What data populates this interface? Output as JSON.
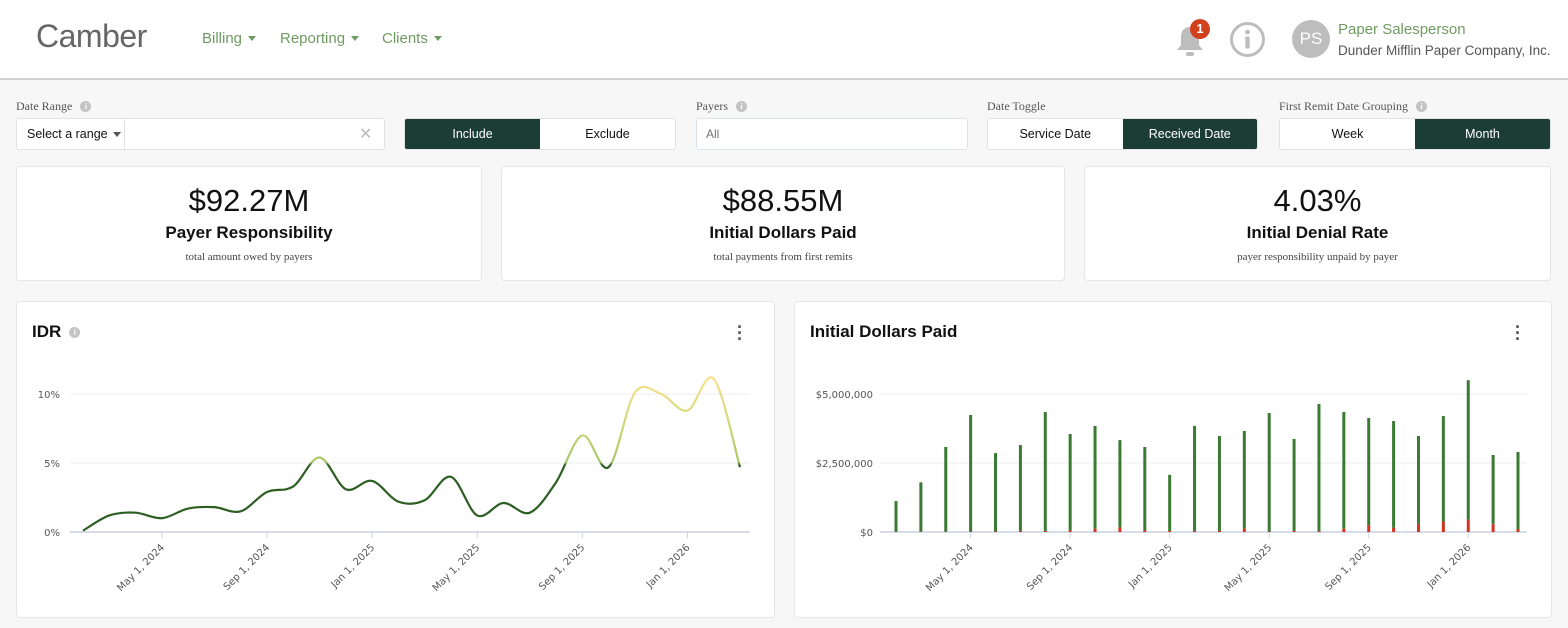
{
  "header": {
    "logo": "Camber",
    "nav": [
      {
        "label": "Billing"
      },
      {
        "label": "Reporting"
      },
      {
        "label": "Clients"
      }
    ],
    "notification_count": "1",
    "user": {
      "initials": "PS",
      "name": "Paper Salesperson",
      "org": "Dunder Mifflin Paper Company, Inc."
    }
  },
  "filters": {
    "date_range": {
      "label": "Date Range",
      "select": "Select a range",
      "value": "",
      "include": "Include",
      "exclude": "Exclude",
      "selected": "Include"
    },
    "payers": {
      "label": "Payers",
      "placeholder": "All"
    },
    "date_toggle": {
      "label": "Date Toggle",
      "options": [
        "Service Date",
        "Received Date"
      ],
      "selected": "Received Date"
    },
    "grouping": {
      "label": "First Remit Date Grouping",
      "options": [
        "Week",
        "Month"
      ],
      "selected": "Month"
    }
  },
  "kpis": [
    {
      "value": "$92.27M",
      "title": "Payer Responsibility",
      "subtitle": "total amount owed by payers"
    },
    {
      "value": "$88.55M",
      "title": "Initial Dollars Paid",
      "subtitle": "total payments from first remits"
    },
    {
      "value": "4.03%",
      "title": "Initial Denial Rate",
      "subtitle": "payer responsibility unpaid by payer"
    }
  ],
  "colors": {
    "accent": "#1c3d36",
    "nav": "#6f9b62",
    "line_low": "#2d5e22",
    "line_high": "#f2e08a",
    "bar_green": "#3a7a32",
    "bar_red": "#d2321e"
  },
  "chart_data": [
    {
      "type": "line",
      "title": "IDR",
      "x": [
        "2024-02",
        "2024-03",
        "2024-04",
        "2024-05",
        "2024-06",
        "2024-07",
        "2024-08",
        "2024-09",
        "2024-10",
        "2024-11",
        "2024-12",
        "2025-01",
        "2025-02",
        "2025-03",
        "2025-04",
        "2025-05",
        "2025-06",
        "2025-07",
        "2025-08",
        "2025-09",
        "2025-10",
        "2025-11",
        "2025-12",
        "2026-01",
        "2026-02",
        "2026-03"
      ],
      "values": [
        0.1,
        1.2,
        1.4,
        1.0,
        1.7,
        1.8,
        1.5,
        2.9,
        3.3,
        5.4,
        3.1,
        3.7,
        2.2,
        2.3,
        4.0,
        1.2,
        2.1,
        1.4,
        3.6,
        7.0,
        4.7,
        10.1,
        10.0,
        8.8,
        11.1,
        4.7
      ],
      "yticks": [
        "0%",
        "5%",
        "10%"
      ],
      "ylim": [
        0,
        10
      ],
      "xticks": [
        "May 1, 2024",
        "Sep 1, 2024",
        "Jan 1, 2025",
        "May 1, 2025",
        "Sep 1, 2025",
        "Jan 1, 2026"
      ],
      "grid": true
    },
    {
      "type": "bar",
      "title": "Initial Dollars Paid",
      "x": [
        "2024-02",
        "2024-03",
        "2024-04",
        "2024-05",
        "2024-06",
        "2024-07",
        "2024-08",
        "2024-09",
        "2024-10",
        "2024-11",
        "2024-12",
        "2025-01",
        "2025-02",
        "2025-03",
        "2025-04",
        "2025-05",
        "2025-06",
        "2025-07",
        "2025-08",
        "2025-09",
        "2025-10",
        "2025-11",
        "2025-12",
        "2026-01",
        "2026-02",
        "2026-03"
      ],
      "series": [
        {
          "values": [
            1120000,
            1800000,
            3080000,
            4240000,
            2860000,
            3150000,
            4350000,
            3550000,
            3840000,
            3330000,
            3080000,
            2070000,
            3840000,
            3480000,
            3660000,
            4310000,
            3370000,
            4640000,
            4350000,
            4130000,
            4020000,
            3480000,
            4200000,
            5500000,
            2790000,
            2900000
          ]
        },
        {
          "values": [
            10000,
            10000,
            10000,
            20000,
            20000,
            40000,
            40000,
            60000,
            120000,
            160000,
            60000,
            40000,
            40000,
            40000,
            120000,
            20000,
            40000,
            40000,
            120000,
            250000,
            150000,
            300000,
            380000,
            450000,
            280000,
            110000
          ]
        }
      ],
      "yticks": [
        "$0",
        "$2,500,000",
        "$5,000,000"
      ],
      "ylim": [
        0,
        5000000
      ],
      "xticks": [
        "May 1, 2024",
        "Sep 1, 2024",
        "Jan 1, 2025",
        "May 1, 2025",
        "Sep 1, 2025",
        "Jan 1, 2026"
      ],
      "grid": true
    }
  ]
}
